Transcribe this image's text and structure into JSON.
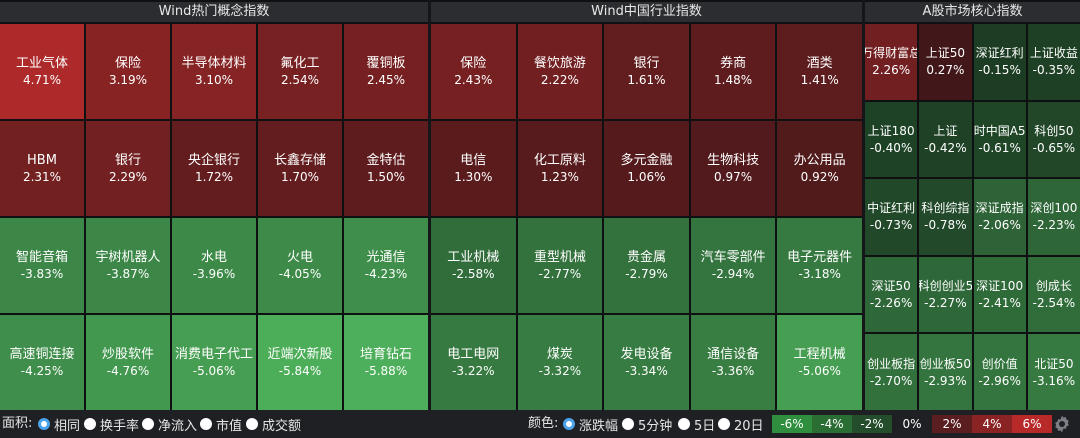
{
  "panels": [
    {
      "title": "Wind热门概念指数",
      "cols": 5,
      "rows": [
        [
          {
            "name": "工业气体",
            "pct": "4.71%"
          },
          {
            "name": "保险",
            "pct": "3.19%"
          },
          {
            "name": "半导体材料",
            "pct": "3.10%"
          },
          {
            "name": "氟化工",
            "pct": "2.54%"
          },
          {
            "name": "覆铜板",
            "pct": "2.45%"
          }
        ],
        [
          {
            "name": "HBM",
            "pct": "2.31%"
          },
          {
            "name": "银行",
            "pct": "2.29%"
          },
          {
            "name": "央企银行",
            "pct": "1.72%"
          },
          {
            "name": "长鑫存储",
            "pct": "1.70%"
          },
          {
            "name": "金特估",
            "pct": "1.50%"
          }
        ],
        [
          {
            "name": "智能音箱",
            "pct": "-3.83%"
          },
          {
            "name": "宇树机器人",
            "pct": "-3.87%"
          },
          {
            "name": "水电",
            "pct": "-3.96%"
          },
          {
            "name": "火电",
            "pct": "-4.05%"
          },
          {
            "name": "光通信",
            "pct": "-4.23%"
          }
        ],
        [
          {
            "name": "高速铜连接",
            "pct": "-4.25%"
          },
          {
            "name": "炒股软件",
            "pct": "-4.76%"
          },
          {
            "name": "消费电子代工",
            "pct": "-5.06%"
          },
          {
            "name": "近端次新股",
            "pct": "-5.84%"
          },
          {
            "name": "培育钻石",
            "pct": "-5.88%"
          }
        ]
      ]
    },
    {
      "title": "Wind中国行业指数",
      "cols": 5,
      "rows": [
        [
          {
            "name": "保险",
            "pct": "2.43%"
          },
          {
            "name": "餐饮旅游",
            "pct": "2.22%"
          },
          {
            "name": "银行",
            "pct": "1.61%"
          },
          {
            "name": "券商",
            "pct": "1.48%"
          },
          {
            "name": "酒类",
            "pct": "1.41%"
          }
        ],
        [
          {
            "name": "电信",
            "pct": "1.30%"
          },
          {
            "name": "化工原料",
            "pct": "1.23%"
          },
          {
            "name": "多元金融",
            "pct": "1.06%"
          },
          {
            "name": "生物科技",
            "pct": "0.97%"
          },
          {
            "name": "办公用品",
            "pct": "0.92%"
          }
        ],
        [
          {
            "name": "工业机械",
            "pct": "-2.58%"
          },
          {
            "name": "重型机械",
            "pct": "-2.77%"
          },
          {
            "name": "贵金属",
            "pct": "-2.79%"
          },
          {
            "name": "汽车零部件",
            "pct": "-2.94%"
          },
          {
            "name": "电子元器件",
            "pct": "-3.18%"
          }
        ],
        [
          {
            "name": "电工电网",
            "pct": "-3.22%"
          },
          {
            "name": "煤炭",
            "pct": "-3.32%"
          },
          {
            "name": "发电设备",
            "pct": "-3.34%"
          },
          {
            "name": "通信设备",
            "pct": "-3.36%"
          },
          {
            "name": "工程机械",
            "pct": "-5.06%"
          }
        ]
      ]
    },
    {
      "title": "A股市场核心指数",
      "cols": 4,
      "rows": [
        [
          {
            "name": "万得财富总",
            "pct": "2.26%"
          },
          {
            "name": "上证50",
            "pct": "0.27%"
          },
          {
            "name": "深证红利",
            "pct": "-0.15%"
          },
          {
            "name": "上证收益",
            "pct": "-0.35%"
          }
        ],
        [
          {
            "name": "上证180",
            "pct": "-0.40%"
          },
          {
            "name": "上证",
            "pct": "-0.42%"
          },
          {
            "name": "时中国A5",
            "pct": "-0.61%"
          },
          {
            "name": "科创50",
            "pct": "-0.65%"
          }
        ],
        [
          {
            "name": "中证红利",
            "pct": "-0.73%"
          },
          {
            "name": "科创综指",
            "pct": "-0.78%"
          },
          {
            "name": "深证成指",
            "pct": "-2.06%"
          },
          {
            "name": "深创100",
            "pct": "-2.23%"
          }
        ],
        [
          {
            "name": "深证50",
            "pct": "-2.26%"
          },
          {
            "name": "科创创业5",
            "pct": "-2.27%"
          },
          {
            "name": "深证100",
            "pct": "-2.41%"
          },
          {
            "name": "创成长",
            "pct": "-2.54%"
          }
        ],
        [
          {
            "name": "创业板指",
            "pct": "-2.70%"
          },
          {
            "name": "创业板50",
            "pct": "-2.93%"
          },
          {
            "name": "创价值",
            "pct": "-2.96%"
          },
          {
            "name": "北证50",
            "pct": "-3.16%"
          }
        ]
      ]
    }
  ],
  "bottom": {
    "area_label": "面积:",
    "area_options": [
      "相同",
      "换手率",
      "净流入",
      "市值",
      "成交额"
    ],
    "area_selected": 0,
    "color_label": "颜色:",
    "color_options": [
      "涨跌幅",
      "5分钟",
      "5日",
      "20日"
    ],
    "color_selected": 0,
    "legend": [
      {
        "label": "-6%",
        "color": "#2f8f3f"
      },
      {
        "label": "-4%",
        "color": "#2a6e34"
      },
      {
        "label": "-2%",
        "color": "#244d2b"
      },
      {
        "label": "0%",
        "color": "#1f2024"
      },
      {
        "label": "2%",
        "color": "#5a1e20"
      },
      {
        "label": "4%",
        "color": "#8a2424"
      },
      {
        "label": "6%",
        "color": "#b82a2a"
      }
    ],
    "settings_icon": "gear-icon"
  },
  "colors": {
    "up_max": "#b52b2b",
    "up_min": "#3a1618",
    "down_max": "#4eb15c",
    "down_min": "#1b3a22"
  }
}
